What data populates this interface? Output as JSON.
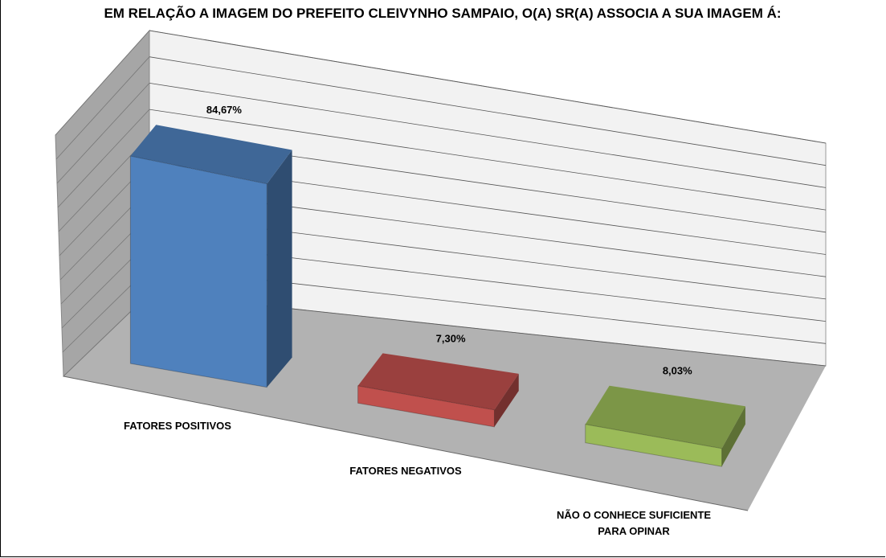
{
  "chart_data": {
    "type": "bar3d",
    "title": "EM RELAÇÃO A IMAGEM DO PREFEITO CLEIVYNHO SAMPAIO, O(A) SR(A) ASSOCIA A SUA IMAGEM Á:",
    "categories": [
      "FATORES POSITIVOS",
      "FATORES NEGATIVOS",
      "NÃO O CONHECE SUFICIENTE PARA OPINAR"
    ],
    "values": [
      84.67,
      7.3,
      8.03
    ],
    "value_labels": [
      "84,67%",
      "7,30%",
      "8,03%"
    ],
    "colors": [
      "#4f81bd",
      "#c0504d",
      "#9bbb59"
    ],
    "ylim": [
      0,
      100
    ],
    "yticks": [
      0,
      10,
      20,
      30,
      40,
      50,
      60,
      70,
      80,
      90,
      100
    ],
    "grid": true
  }
}
